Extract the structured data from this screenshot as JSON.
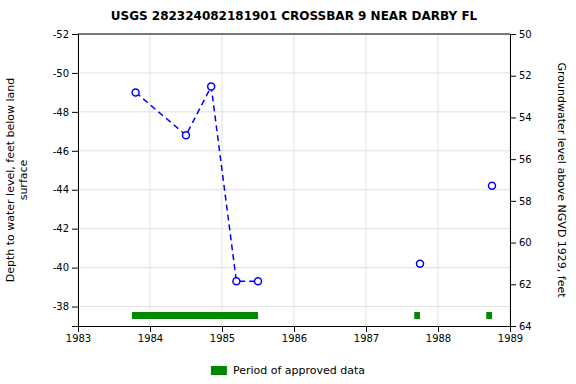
{
  "chart_data": {
    "type": "line",
    "title": "USGS 282324082181901 CROSSBAR 9 NEAR DARBY FL",
    "ylabel": "Depth to water level, feet below land\nsurface",
    "y2label": "Groundwater level above NGVD 1929, feet",
    "xlim": [
      1983,
      1989
    ],
    "xticks": [
      1983,
      1984,
      1985,
      1986,
      1987,
      1988,
      1989
    ],
    "ylim": [
      -37,
      -52
    ],
    "yticks": [
      -52,
      -50,
      -48,
      -46,
      -44,
      -42,
      -40,
      -38
    ],
    "y2lim": [
      64,
      50
    ],
    "y2ticks": [
      50,
      52,
      54,
      56,
      58,
      60,
      62,
      64
    ],
    "grid": true,
    "legend": "bottom",
    "series": [
      {
        "x": [
          1983.8,
          1984.5,
          1984.85,
          1985.2,
          1985.5
        ],
        "values": [
          -49.0,
          -46.8,
          -49.3,
          -39.3,
          -39.3
        ],
        "color": "#0000FF",
        "marker": "circle",
        "line_style": "dashed"
      },
      {
        "x": [
          1987.75,
          1988.75
        ],
        "values": [
          -40.2,
          -44.2
        ],
        "color": "#0000FF",
        "marker": "circle",
        "line_style": "none"
      }
    ],
    "periods": {
      "name": "Period of approved data",
      "color": "#008800",
      "start": [
        1983.75,
        1987.67,
        1988.67
      ],
      "end": [
        1985.5,
        1987.75,
        1988.75
      ]
    }
  }
}
